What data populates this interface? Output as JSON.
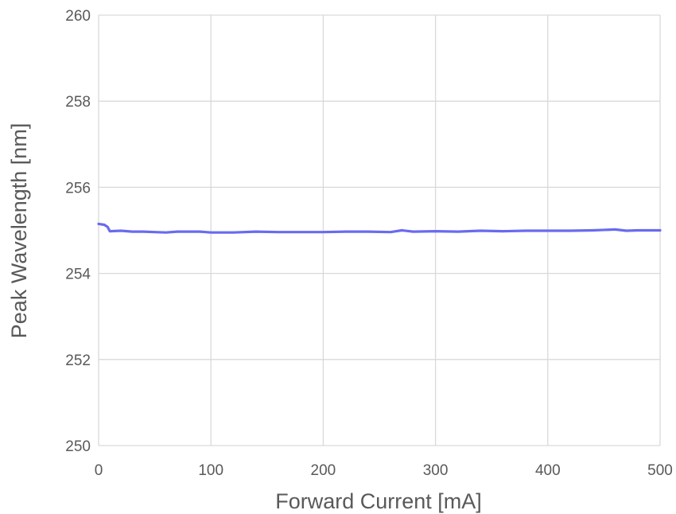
{
  "chart_data": {
    "type": "line",
    "title": "",
    "xlabel": "Forward Current [mA]",
    "ylabel": "Peak Wavelength [nm]",
    "xlim": [
      0,
      500
    ],
    "ylim": [
      250,
      260
    ],
    "xticks": [
      0,
      100,
      200,
      300,
      400,
      500
    ],
    "yticks": [
      250,
      252,
      254,
      256,
      258,
      260
    ],
    "xtick_labels": [
      "0",
      "100",
      "200",
      "300",
      "400",
      "500"
    ],
    "ytick_labels": [
      "250",
      "252",
      "254",
      "256",
      "258",
      "260"
    ],
    "grid": true,
    "legend": "none",
    "series": [
      {
        "color": "#6a6af0",
        "x": [
          0,
          5,
          8,
          10,
          20,
          30,
          40,
          50,
          60,
          70,
          80,
          90,
          100,
          120,
          140,
          160,
          180,
          200,
          220,
          240,
          260,
          270,
          280,
          300,
          320,
          340,
          360,
          380,
          400,
          420,
          440,
          460,
          470,
          480,
          500
        ],
        "y": [
          255.15,
          255.13,
          255.08,
          254.98,
          254.99,
          254.97,
          254.97,
          254.96,
          254.95,
          254.97,
          254.97,
          254.97,
          254.95,
          254.95,
          254.97,
          254.96,
          254.96,
          254.96,
          254.97,
          254.97,
          254.96,
          255.0,
          254.97,
          254.98,
          254.97,
          254.99,
          254.98,
          254.99,
          254.99,
          254.99,
          255.0,
          255.02,
          254.99,
          255.0,
          255.0
        ]
      }
    ]
  }
}
